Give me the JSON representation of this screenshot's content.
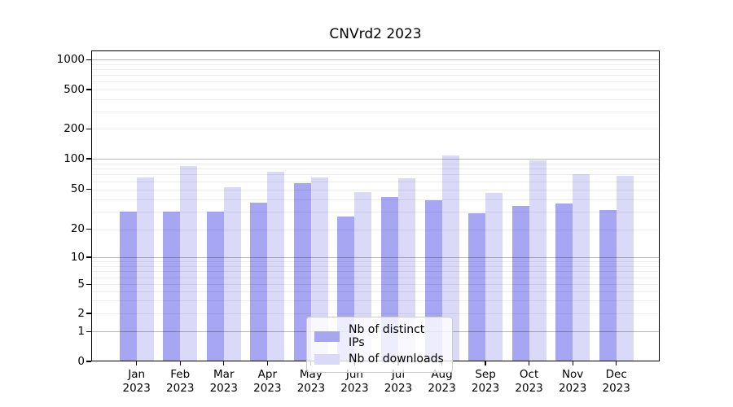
{
  "chart_data": {
    "type": "bar",
    "title": "CNVrd2 2023",
    "categories": [
      "Jan",
      "Feb",
      "Mar",
      "Apr",
      "May",
      "Jun",
      "Jul",
      "Aug",
      "Sep",
      "Oct",
      "Nov",
      "Dec"
    ],
    "category_year": "2023",
    "series": [
      {
        "name": "Nb of distinct IPs",
        "color": "#a6a6f2",
        "values": [
          30,
          30,
          30,
          37,
          58,
          27,
          42,
          39,
          29,
          34,
          36,
          31
        ]
      },
      {
        "name": "Nb of downloads",
        "color": "#dadaf8",
        "values": [
          66,
          85,
          53,
          74,
          66,
          47,
          64,
          107,
          46,
          96,
          71,
          68
        ]
      }
    ],
    "yticks": [
      0,
      1,
      2,
      5,
      10,
      20,
      50,
      100,
      200,
      500,
      1000
    ],
    "major_yticks": [
      1,
      10,
      100,
      1000
    ],
    "ylim": [
      0,
      1000
    ],
    "yscale": "log-like",
    "grid": true,
    "legend_position": "lower center",
    "xlabel": "",
    "ylabel": ""
  }
}
